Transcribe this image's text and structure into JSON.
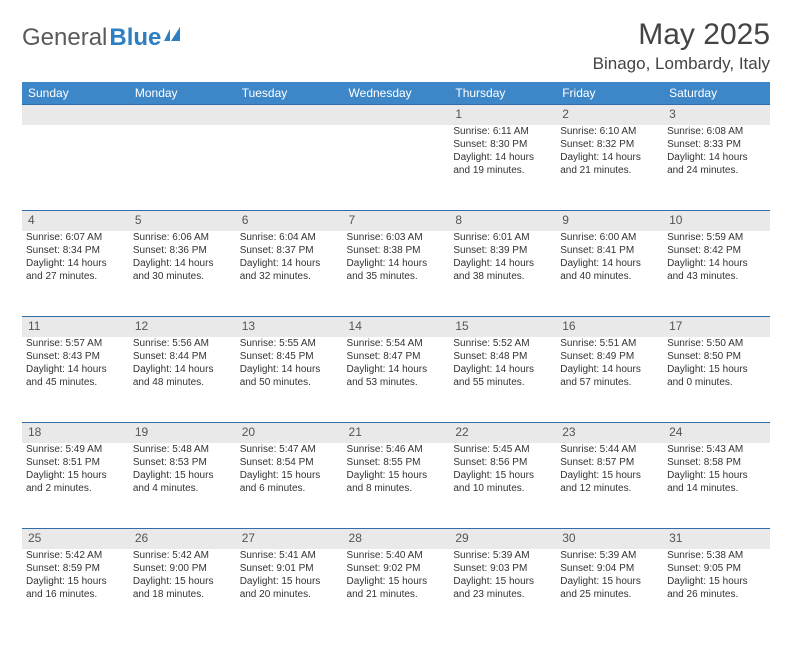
{
  "logo": {
    "text1": "General",
    "text2": "Blue"
  },
  "title": "May 2025",
  "location": "Binago, Lombardy, Italy",
  "colors": {
    "header_bg": "#3d87c9",
    "header_text": "#ffffff",
    "daynum_bg": "#e9e9e9",
    "daynum_text": "#555555",
    "body_text": "#333333",
    "logo_gray": "#5a5a5a",
    "logo_blue": "#2d7fc1",
    "row_border": "#2d6fa8"
  },
  "weekdays": [
    "Sunday",
    "Monday",
    "Tuesday",
    "Wednesday",
    "Thursday",
    "Friday",
    "Saturday"
  ],
  "weeks": [
    {
      "nums": [
        "",
        "",
        "",
        "",
        "1",
        "2",
        "3"
      ],
      "cells": [
        null,
        null,
        null,
        null,
        {
          "sr": "Sunrise: 6:11 AM",
          "ss": "Sunset: 8:30 PM",
          "dl": "Daylight: 14 hours and 19 minutes."
        },
        {
          "sr": "Sunrise: 6:10 AM",
          "ss": "Sunset: 8:32 PM",
          "dl": "Daylight: 14 hours and 21 minutes."
        },
        {
          "sr": "Sunrise: 6:08 AM",
          "ss": "Sunset: 8:33 PM",
          "dl": "Daylight: 14 hours and 24 minutes."
        }
      ]
    },
    {
      "nums": [
        "4",
        "5",
        "6",
        "7",
        "8",
        "9",
        "10"
      ],
      "cells": [
        {
          "sr": "Sunrise: 6:07 AM",
          "ss": "Sunset: 8:34 PM",
          "dl": "Daylight: 14 hours and 27 minutes."
        },
        {
          "sr": "Sunrise: 6:06 AM",
          "ss": "Sunset: 8:36 PM",
          "dl": "Daylight: 14 hours and 30 minutes."
        },
        {
          "sr": "Sunrise: 6:04 AM",
          "ss": "Sunset: 8:37 PM",
          "dl": "Daylight: 14 hours and 32 minutes."
        },
        {
          "sr": "Sunrise: 6:03 AM",
          "ss": "Sunset: 8:38 PM",
          "dl": "Daylight: 14 hours and 35 minutes."
        },
        {
          "sr": "Sunrise: 6:01 AM",
          "ss": "Sunset: 8:39 PM",
          "dl": "Daylight: 14 hours and 38 minutes."
        },
        {
          "sr": "Sunrise: 6:00 AM",
          "ss": "Sunset: 8:41 PM",
          "dl": "Daylight: 14 hours and 40 minutes."
        },
        {
          "sr": "Sunrise: 5:59 AM",
          "ss": "Sunset: 8:42 PM",
          "dl": "Daylight: 14 hours and 43 minutes."
        }
      ]
    },
    {
      "nums": [
        "11",
        "12",
        "13",
        "14",
        "15",
        "16",
        "17"
      ],
      "cells": [
        {
          "sr": "Sunrise: 5:57 AM",
          "ss": "Sunset: 8:43 PM",
          "dl": "Daylight: 14 hours and 45 minutes."
        },
        {
          "sr": "Sunrise: 5:56 AM",
          "ss": "Sunset: 8:44 PM",
          "dl": "Daylight: 14 hours and 48 minutes."
        },
        {
          "sr": "Sunrise: 5:55 AM",
          "ss": "Sunset: 8:45 PM",
          "dl": "Daylight: 14 hours and 50 minutes."
        },
        {
          "sr": "Sunrise: 5:54 AM",
          "ss": "Sunset: 8:47 PM",
          "dl": "Daylight: 14 hours and 53 minutes."
        },
        {
          "sr": "Sunrise: 5:52 AM",
          "ss": "Sunset: 8:48 PM",
          "dl": "Daylight: 14 hours and 55 minutes."
        },
        {
          "sr": "Sunrise: 5:51 AM",
          "ss": "Sunset: 8:49 PM",
          "dl": "Daylight: 14 hours and 57 minutes."
        },
        {
          "sr": "Sunrise: 5:50 AM",
          "ss": "Sunset: 8:50 PM",
          "dl": "Daylight: 15 hours and 0 minutes."
        }
      ]
    },
    {
      "nums": [
        "18",
        "19",
        "20",
        "21",
        "22",
        "23",
        "24"
      ],
      "cells": [
        {
          "sr": "Sunrise: 5:49 AM",
          "ss": "Sunset: 8:51 PM",
          "dl": "Daylight: 15 hours and 2 minutes."
        },
        {
          "sr": "Sunrise: 5:48 AM",
          "ss": "Sunset: 8:53 PM",
          "dl": "Daylight: 15 hours and 4 minutes."
        },
        {
          "sr": "Sunrise: 5:47 AM",
          "ss": "Sunset: 8:54 PM",
          "dl": "Daylight: 15 hours and 6 minutes."
        },
        {
          "sr": "Sunrise: 5:46 AM",
          "ss": "Sunset: 8:55 PM",
          "dl": "Daylight: 15 hours and 8 minutes."
        },
        {
          "sr": "Sunrise: 5:45 AM",
          "ss": "Sunset: 8:56 PM",
          "dl": "Daylight: 15 hours and 10 minutes."
        },
        {
          "sr": "Sunrise: 5:44 AM",
          "ss": "Sunset: 8:57 PM",
          "dl": "Daylight: 15 hours and 12 minutes."
        },
        {
          "sr": "Sunrise: 5:43 AM",
          "ss": "Sunset: 8:58 PM",
          "dl": "Daylight: 15 hours and 14 minutes."
        }
      ]
    },
    {
      "nums": [
        "25",
        "26",
        "27",
        "28",
        "29",
        "30",
        "31"
      ],
      "cells": [
        {
          "sr": "Sunrise: 5:42 AM",
          "ss": "Sunset: 8:59 PM",
          "dl": "Daylight: 15 hours and 16 minutes."
        },
        {
          "sr": "Sunrise: 5:42 AM",
          "ss": "Sunset: 9:00 PM",
          "dl": "Daylight: 15 hours and 18 minutes."
        },
        {
          "sr": "Sunrise: 5:41 AM",
          "ss": "Sunset: 9:01 PM",
          "dl": "Daylight: 15 hours and 20 minutes."
        },
        {
          "sr": "Sunrise: 5:40 AM",
          "ss": "Sunset: 9:02 PM",
          "dl": "Daylight: 15 hours and 21 minutes."
        },
        {
          "sr": "Sunrise: 5:39 AM",
          "ss": "Sunset: 9:03 PM",
          "dl": "Daylight: 15 hours and 23 minutes."
        },
        {
          "sr": "Sunrise: 5:39 AM",
          "ss": "Sunset: 9:04 PM",
          "dl": "Daylight: 15 hours and 25 minutes."
        },
        {
          "sr": "Sunrise: 5:38 AM",
          "ss": "Sunset: 9:05 PM",
          "dl": "Daylight: 15 hours and 26 minutes."
        }
      ]
    }
  ]
}
